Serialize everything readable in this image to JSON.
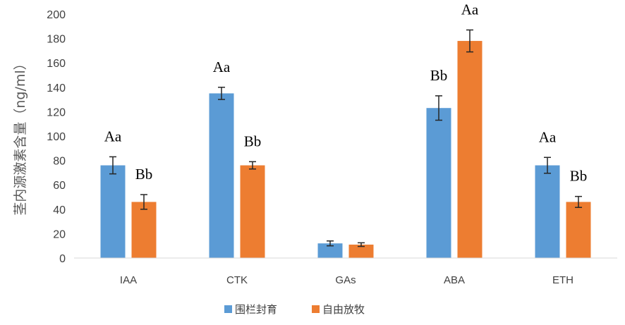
{
  "chart_data": {
    "type": "bar",
    "ylabel": "茎内源激素含量（ng/ml）",
    "ylim": [
      0,
      200
    ],
    "yticks": [
      0,
      20,
      40,
      60,
      80,
      100,
      120,
      140,
      160,
      180,
      200
    ],
    "categories": [
      "IAA",
      "CTK",
      "GAs",
      "ABA",
      "ETH"
    ],
    "series": [
      {
        "name": "围栏封育",
        "color": "#5B9BD5",
        "values": [
          76,
          135,
          12,
          123,
          76
        ],
        "errors": [
          7,
          5,
          2,
          10,
          6.5
        ],
        "labels": [
          "Aa",
          "Aa",
          "",
          "Bb",
          "Aa"
        ]
      },
      {
        "name": "自由放牧",
        "color": "#ED7D31",
        "values": [
          46,
          76,
          11,
          178,
          46
        ],
        "errors": [
          6,
          3,
          1.5,
          9,
          4.5
        ],
        "labels": [
          "Bb",
          "Bb",
          "",
          "Aa",
          "Bb"
        ]
      }
    ],
    "grid": false,
    "legend": "bottom"
  }
}
